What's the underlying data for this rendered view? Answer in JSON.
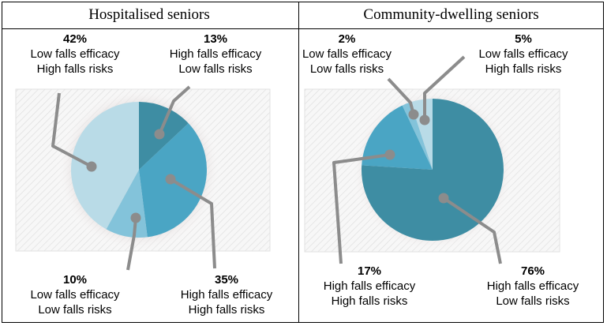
{
  "chart_data": [
    {
      "type": "pie",
      "title": "Hospitalised seniors",
      "colors": [
        "#3e8da3",
        "#4aa5c4",
        "#83c3da",
        "#b9dbe7"
      ],
      "slices": [
        {
          "label_line1": "High falls efficacy",
          "label_line2": "Low falls risks",
          "value": 13,
          "value_label": "13%"
        },
        {
          "label_line1": "High falls efficacy",
          "label_line2": "High falls risks",
          "value": 35,
          "value_label": "35%"
        },
        {
          "label_line1": "Low falls efficacy",
          "label_line2": "Low falls risks",
          "value": 10,
          "value_label": "10%"
        },
        {
          "label_line1": "Low falls efficacy",
          "label_line2": "High falls risks",
          "value": 42,
          "value_label": "42%"
        }
      ]
    },
    {
      "type": "pie",
      "title": "Community-dwelling seniors",
      "colors": [
        "#3e8da3",
        "#4aa5c4",
        "#83c3da",
        "#b9dbe7"
      ],
      "slices": [
        {
          "label_line1": "High falls efficacy",
          "label_line2": "Low falls risks",
          "value": 76,
          "value_label": "76%"
        },
        {
          "label_line1": "High falls efficacy",
          "label_line2": "High falls risks",
          "value": 17,
          "value_label": "17%"
        },
        {
          "label_line1": "Low falls efficacy",
          "label_line2": "Low falls risks",
          "value": 2,
          "value_label": "2%"
        },
        {
          "label_line1": "Low falls efficacy",
          "label_line2": "High falls risks",
          "value": 5,
          "value_label": "5%"
        }
      ]
    }
  ]
}
